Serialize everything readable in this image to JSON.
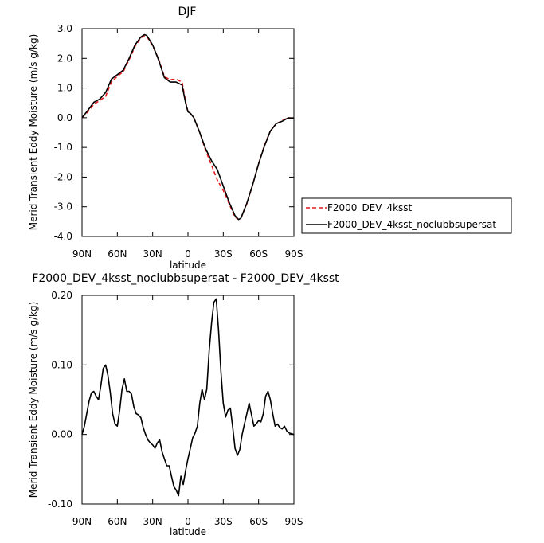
{
  "chart_data": [
    {
      "type": "line",
      "title": "DJF",
      "xlabel": "latitude",
      "ylabel": "Merid Transient Eddy Moisture (m/s g/kg)",
      "x_ticks": [
        "90N",
        "60N",
        "30N",
        "0",
        "30S",
        "60S",
        "90S"
      ],
      "y_ticks": [
        "3.0",
        "2.0",
        "1.0",
        "0.0",
        "-1.0",
        "-2.0",
        "-3.0",
        "-4.0"
      ],
      "xlim": [
        90,
        -90
      ],
      "ylim": [
        -4.0,
        3.0
      ],
      "x_units": "degrees latitude (positive = N)",
      "legend_placement": "right",
      "grid": false,
      "series": [
        {
          "name": "F2000_DEV_4ksst",
          "color": "#e31a1c",
          "dash": "dashed",
          "x": [
            90,
            85,
            80,
            75,
            70,
            65,
            60,
            55,
            50,
            45,
            40,
            37,
            35,
            30,
            25,
            20,
            15,
            10,
            5,
            2,
            0,
            -2,
            -5,
            -10,
            -15,
            -20,
            -25,
            -30,
            -35,
            -40,
            -43,
            -45,
            -50,
            -55,
            -60,
            -65,
            -70,
            -75,
            -80,
            -85,
            -90
          ],
          "y": [
            0.0,
            0.2,
            0.45,
            0.58,
            0.72,
            1.2,
            1.4,
            1.55,
            1.95,
            2.4,
            2.7,
            2.75,
            2.74,
            2.42,
            1.98,
            1.38,
            1.28,
            1.3,
            1.2,
            0.55,
            0.2,
            0.15,
            0.0,
            -0.5,
            -1.1,
            -1.6,
            -2.1,
            -2.45,
            -2.9,
            -3.35,
            -3.42,
            -3.38,
            -2.9,
            -2.25,
            -1.55,
            -0.92,
            -0.45,
            -0.2,
            -0.1,
            0.0,
            -0.02
          ]
        },
        {
          "name": "F2000_DEV_4ksst_noclubbsupersat",
          "color": "#000000",
          "dash": "solid",
          "x": [
            90,
            85,
            80,
            75,
            70,
            65,
            60,
            55,
            50,
            45,
            40,
            37,
            35,
            30,
            25,
            20,
            15,
            10,
            5,
            2,
            0,
            -2,
            -5,
            -10,
            -15,
            -20,
            -25,
            -30,
            -35,
            -40,
            -43,
            -45,
            -50,
            -55,
            -60,
            -65,
            -70,
            -75,
            -80,
            -85,
            -90
          ],
          "y": [
            0.0,
            0.25,
            0.52,
            0.63,
            0.85,
            1.3,
            1.45,
            1.6,
            2.0,
            2.45,
            2.72,
            2.8,
            2.77,
            2.45,
            1.95,
            1.35,
            1.2,
            1.2,
            1.1,
            0.5,
            0.2,
            0.15,
            0.0,
            -0.5,
            -1.05,
            -1.45,
            -1.75,
            -2.3,
            -2.85,
            -3.3,
            -3.43,
            -3.38,
            -2.88,
            -2.25,
            -1.55,
            -0.95,
            -0.45,
            -0.2,
            -0.12,
            -0.01,
            -0.02
          ]
        }
      ]
    },
    {
      "type": "line",
      "title": "F2000_DEV_4ksst_noclubbsupersat - F2000_DEV_4ksst",
      "xlabel": "latitude",
      "ylabel": "Merid Transient Eddy Moisture (m/s g/kg)",
      "x_ticks": [
        "90N",
        "60N",
        "30N",
        "0",
        "30S",
        "60S",
        "90S"
      ],
      "y_ticks": [
        "0.20",
        "0.10",
        "0.00",
        "-0.10"
      ],
      "xlim": [
        90,
        -90
      ],
      "ylim": [
        -0.1,
        0.2
      ],
      "x_units": "degrees latitude (positive = N)",
      "grid": false,
      "series": [
        {
          "color": "#000000",
          "dash": "solid",
          "x": [
            90,
            88,
            86,
            84,
            82,
            80,
            78,
            76,
            74,
            72,
            70,
            68,
            66,
            64,
            62,
            60,
            58,
            56,
            54,
            52,
            50,
            48,
            46,
            44,
            42,
            40,
            38,
            36,
            34,
            32,
            30,
            28,
            26,
            24,
            22,
            20,
            18,
            16,
            14,
            12,
            10,
            8,
            6,
            4,
            2,
            0,
            -2,
            -4,
            -6,
            -8,
            -10,
            -12,
            -14,
            -16,
            -18,
            -20,
            -22,
            -24,
            -26,
            -28,
            -30,
            -32,
            -34,
            -36,
            -38,
            -40,
            -42,
            -44,
            -46,
            -48,
            -50,
            -52,
            -54,
            -56,
            -58,
            -60,
            -62,
            -64,
            -66,
            -68,
            -70,
            -72,
            -74,
            -76,
            -78,
            -80,
            -82,
            -84,
            -86,
            -88,
            -90
          ],
          "y": [
            0.0,
            0.012,
            0.03,
            0.048,
            0.06,
            0.062,
            0.055,
            0.05,
            0.07,
            0.095,
            0.1,
            0.085,
            0.06,
            0.03,
            0.015,
            0.012,
            0.035,
            0.065,
            0.08,
            0.062,
            0.062,
            0.058,
            0.04,
            0.03,
            0.028,
            0.024,
            0.01,
            0.0,
            -0.008,
            -0.012,
            -0.015,
            -0.02,
            -0.012,
            -0.008,
            -0.025,
            -0.035,
            -0.045,
            -0.045,
            -0.06,
            -0.075,
            -0.08,
            -0.088,
            -0.06,
            -0.072,
            -0.052,
            -0.035,
            -0.02,
            -0.005,
            0.002,
            0.012,
            0.045,
            0.065,
            0.05,
            0.065,
            0.12,
            0.16,
            0.19,
            0.195,
            0.15,
            0.09,
            0.045,
            0.025,
            0.035,
            0.038,
            0.01,
            -0.02,
            -0.03,
            -0.022,
            0.0,
            0.015,
            0.03,
            0.045,
            0.028,
            0.012,
            0.015,
            0.02,
            0.018,
            0.03,
            0.055,
            0.062,
            0.05,
            0.03,
            0.012,
            0.015,
            0.01,
            0.008,
            0.012,
            0.005,
            0.002,
            0.001,
            0.0
          ]
        }
      ]
    }
  ]
}
